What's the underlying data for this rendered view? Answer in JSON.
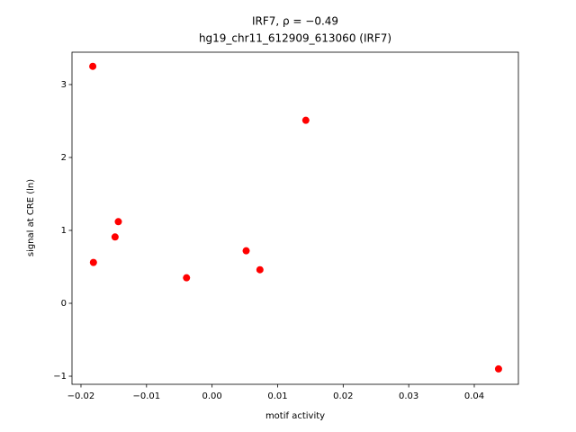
{
  "chart_data": {
    "type": "scatter",
    "title": "IRF7, ρ = −0.49",
    "subtitle": "hg19_chr11_612909_613060 (IRF7)",
    "x_label": "motif activity",
    "y_label": "signal at CRE (ln)",
    "color": "#ff0000",
    "x": [
      -0.0182,
      0.0143,
      -0.0143,
      -0.0148,
      -0.0181,
      -0.0039,
      0.0052,
      0.0073,
      0.0437
    ],
    "values": [
      3.25,
      2.51,
      1.12,
      0.91,
      0.56,
      0.35,
      0.72,
      0.46,
      -0.9
    ],
    "xlim": [
      -0.02137,
      0.04673
    ],
    "ylim": [
      -1.111,
      3.444
    ],
    "xticks": [
      {
        "value": -0.02,
        "label": "−0.02"
      },
      {
        "value": -0.01,
        "label": "−0.01"
      },
      {
        "value": 0,
        "label": "0.00"
      },
      {
        "value": 0.01,
        "label": "0.01"
      },
      {
        "value": 0.02,
        "label": "0.02"
      },
      {
        "value": 0.03,
        "label": "0.03"
      },
      {
        "value": 0.04,
        "label": "0.04"
      }
    ],
    "yticks": [
      {
        "value": -1,
        "label": "−1"
      },
      0,
      1,
      2,
      3
    ],
    "grid": false
  }
}
